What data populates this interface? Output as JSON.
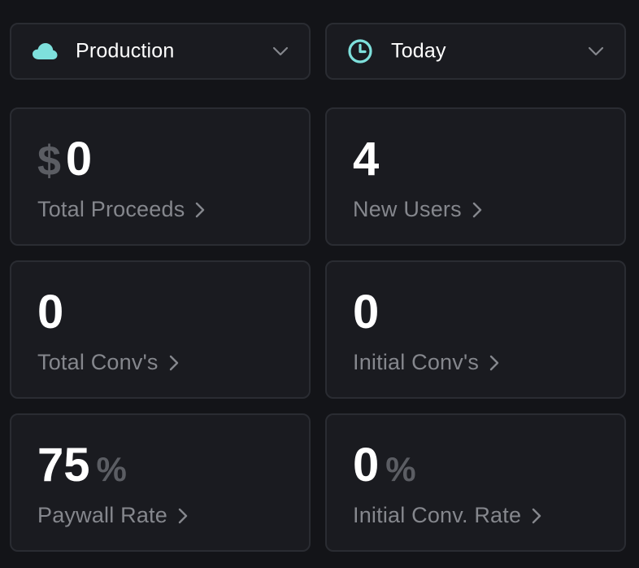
{
  "environment": {
    "label": "Production",
    "icon": "cloud-icon",
    "icon_color": "#7ee0dc"
  },
  "period": {
    "label": "Today",
    "icon": "clock-icon",
    "icon_color": "#7ee0dc"
  },
  "metrics": [
    {
      "id": "total-proceeds",
      "prefix": "$",
      "value": "0",
      "suffix": "",
      "label": "Total Proceeds"
    },
    {
      "id": "new-users",
      "prefix": "",
      "value": "4",
      "suffix": "",
      "label": "New Users"
    },
    {
      "id": "total-convs",
      "prefix": "",
      "value": "0",
      "suffix": "",
      "label": "Total Conv's"
    },
    {
      "id": "initial-convs",
      "prefix": "",
      "value": "0",
      "suffix": "",
      "label": "Initial Conv's"
    },
    {
      "id": "paywall-rate",
      "prefix": "",
      "value": "75",
      "suffix": "%",
      "label": "Paywall Rate"
    },
    {
      "id": "initial-conv-rate",
      "prefix": "",
      "value": "0",
      "suffix": "%",
      "label": "Initial Conv. Rate"
    }
  ],
  "colors": {
    "background": "#131418",
    "card": "#1a1b20",
    "border": "#2a2c32",
    "accent": "#7ee0dc",
    "value": "#ffffff",
    "label": "#85878d",
    "unit": "#5b5d63"
  }
}
